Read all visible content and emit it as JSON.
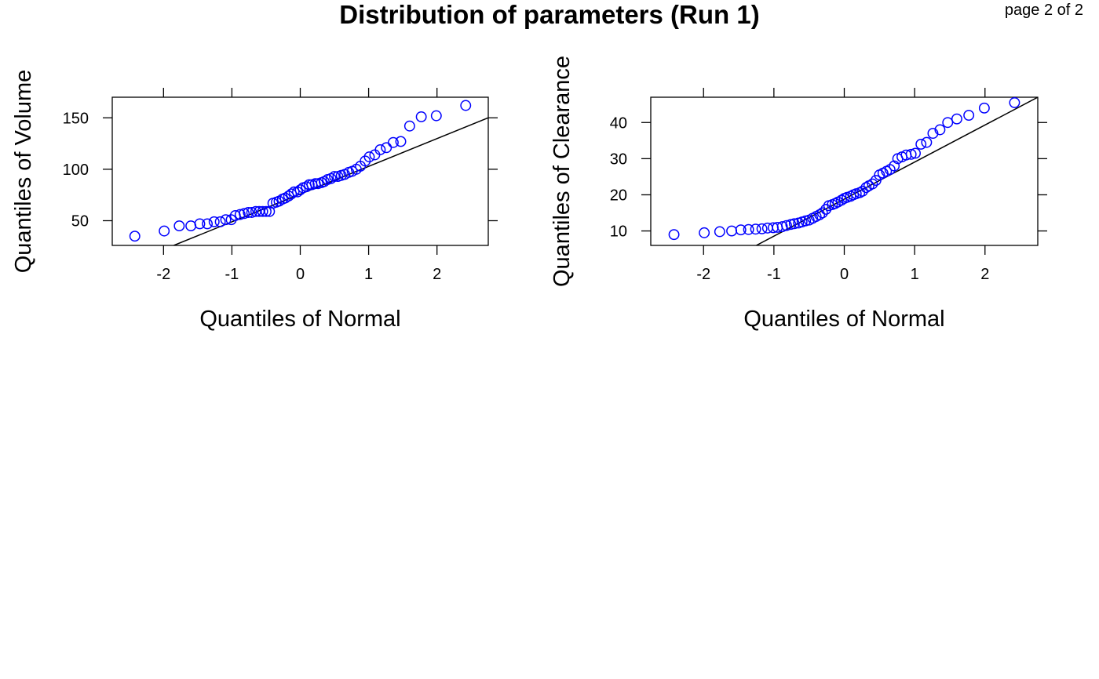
{
  "page": {
    "title": "Distribution of parameters (Run 1)",
    "page_label": "page 2 of 2"
  },
  "colors": {
    "points": "#0000ff",
    "reference_line": "#000000",
    "frame": "#000000"
  },
  "chart_data": [
    {
      "type": "scatter",
      "xlabel": "Quantiles of Normal",
      "ylabel": "Quantiles of Volume",
      "xlim": [
        -2.75,
        2.75
      ],
      "ylim": [
        26,
        170
      ],
      "xticks": [
        -2,
        -1,
        0,
        1,
        2
      ],
      "yticks": [
        50,
        100,
        150
      ],
      "tick_labels_x": [
        "-2",
        "-1",
        "0",
        "1",
        "2"
      ],
      "tick_labels_y": [
        "50",
        "100",
        "150"
      ],
      "reference_line": {
        "x": [
          -1.85,
          2.75
        ],
        "y": [
          26,
          150
        ]
      },
      "x": [
        -2.42,
        -1.99,
        -1.77,
        -1.6,
        -1.47,
        -1.36,
        -1.26,
        -1.17,
        -1.09,
        -1.01,
        -0.95,
        -0.88,
        -0.82,
        -0.76,
        -0.71,
        -0.65,
        -0.6,
        -0.55,
        -0.5,
        -0.45,
        -0.4,
        -0.35,
        -0.31,
        -0.26,
        -0.22,
        -0.17,
        -0.13,
        -0.09,
        -0.04,
        0.0,
        0.04,
        0.09,
        0.13,
        0.17,
        0.22,
        0.26,
        0.31,
        0.35,
        0.4,
        0.45,
        0.5,
        0.55,
        0.6,
        0.65,
        0.71,
        0.76,
        0.82,
        0.88,
        0.95,
        1.01,
        1.09,
        1.17,
        1.26,
        1.36,
        1.47,
        1.6,
        1.77,
        1.99,
        2.42
      ],
      "y": [
        35,
        40,
        45,
        45,
        47,
        47,
        49,
        49,
        51,
        51,
        55,
        56,
        57,
        58,
        58,
        59,
        59,
        59,
        59,
        59,
        67,
        68,
        69,
        71,
        72,
        74,
        76,
        78,
        78,
        80,
        82,
        83,
        85,
        85,
        86,
        86,
        87,
        88,
        90,
        91,
        93,
        93,
        94,
        95,
        97,
        98,
        100,
        103,
        108,
        112,
        114,
        119,
        121,
        126,
        127,
        142,
        151,
        152,
        162
      ]
    },
    {
      "type": "scatter",
      "xlabel": "Quantiles of Normal",
      "ylabel": "Quantiles of Clearance",
      "xlim": [
        -2.75,
        2.75
      ],
      "ylim": [
        6,
        47
      ],
      "xticks": [
        -2,
        -1,
        0,
        1,
        2
      ],
      "yticks": [
        10,
        20,
        30,
        40
      ],
      "tick_labels_x": [
        "-2",
        "-1",
        "0",
        "1",
        "2"
      ],
      "tick_labels_y": [
        "10",
        "20",
        "30",
        "40"
      ],
      "reference_line": {
        "x": [
          -1.25,
          2.75
        ],
        "y": [
          6,
          47
        ]
      },
      "x": [
        -2.42,
        -1.99,
        -1.77,
        -1.6,
        -1.47,
        -1.36,
        -1.26,
        -1.17,
        -1.09,
        -1.01,
        -0.95,
        -0.88,
        -0.82,
        -0.76,
        -0.71,
        -0.65,
        -0.6,
        -0.55,
        -0.5,
        -0.45,
        -0.4,
        -0.35,
        -0.31,
        -0.26,
        -0.22,
        -0.17,
        -0.13,
        -0.09,
        -0.04,
        0.0,
        0.04,
        0.09,
        0.13,
        0.17,
        0.22,
        0.26,
        0.31,
        0.35,
        0.4,
        0.45,
        0.5,
        0.55,
        0.6,
        0.65,
        0.71,
        0.76,
        0.82,
        0.88,
        0.95,
        1.01,
        1.09,
        1.17,
        1.26,
        1.36,
        1.47,
        1.6,
        1.77,
        1.99,
        2.42
      ],
      "y": [
        9,
        9.5,
        9.8,
        10,
        10.3,
        10.4,
        10.5,
        10.6,
        10.8,
        10.9,
        11,
        11.2,
        11.5,
        11.8,
        12,
        12.2,
        12.5,
        12.8,
        13,
        13.5,
        14,
        14.5,
        15,
        16,
        17,
        17.3,
        17.6,
        18,
        18.5,
        19,
        19.3,
        19.6,
        20,
        20.3,
        20.6,
        21,
        22,
        22.5,
        23,
        24,
        25.5,
        26,
        26.5,
        27,
        28,
        30,
        30.5,
        31,
        31.2,
        31.5,
        34,
        34.5,
        37,
        38,
        40,
        41,
        42,
        44,
        45.5
      ]
    }
  ]
}
